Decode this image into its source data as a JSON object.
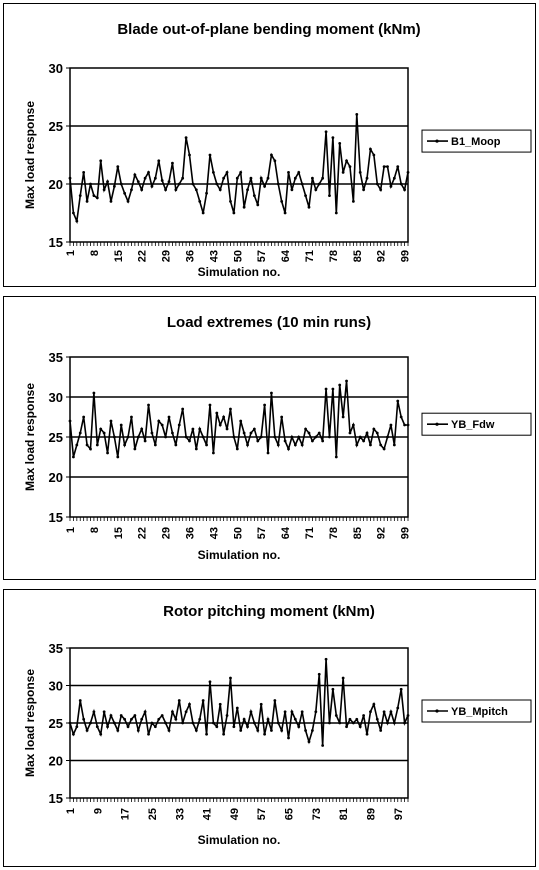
{
  "chart_data": [
    {
      "type": "line",
      "title": "Blade out-of-plane bending moment (kNm)",
      "xlabel": "Simulation no.",
      "ylabel": "Max load response",
      "ylim": [
        15,
        30
      ],
      "yticks": [
        "15",
        "20",
        "25",
        "30"
      ],
      "xlim": [
        1,
        100
      ],
      "xticks": [
        "1",
        "8",
        "15",
        "22",
        "29",
        "36",
        "43",
        "50",
        "57",
        "64",
        "71",
        "78",
        "85",
        "92",
        "99"
      ],
      "reference_lines": [
        20,
        25
      ],
      "legend": "right",
      "series": [
        {
          "name": "B1_Moop",
          "x": [
            1,
            2,
            3,
            4,
            5,
            6,
            7,
            8,
            9,
            10,
            11,
            12,
            13,
            14,
            15,
            16,
            17,
            18,
            19,
            20,
            21,
            22,
            23,
            24,
            25,
            26,
            27,
            28,
            29,
            30,
            31,
            32,
            33,
            34,
            35,
            36,
            37,
            38,
            39,
            40,
            41,
            42,
            43,
            44,
            45,
            46,
            47,
            48,
            49,
            50,
            51,
            52,
            53,
            54,
            55,
            56,
            57,
            58,
            59,
            60,
            61,
            62,
            63,
            64,
            65,
            66,
            67,
            68,
            69,
            70,
            71,
            72,
            73,
            74,
            75,
            76,
            77,
            78,
            79,
            80,
            81,
            82,
            83,
            84,
            85,
            86,
            87,
            88,
            89,
            90,
            91,
            92,
            93,
            94,
            95,
            96,
            97,
            98,
            99,
            100
          ],
          "values": [
            20.5,
            17.5,
            16.8,
            19.0,
            21.0,
            18.5,
            20.0,
            19.0,
            18.8,
            22.0,
            19.5,
            20.2,
            18.5,
            19.8,
            21.5,
            20.0,
            19.2,
            18.5,
            19.5,
            20.8,
            20.2,
            19.5,
            20.5,
            21.0,
            19.8,
            20.5,
            22.0,
            20.3,
            19.5,
            20.2,
            21.8,
            19.5,
            20.0,
            20.5,
            24.0,
            22.5,
            20.0,
            19.5,
            18.5,
            17.5,
            19.2,
            22.5,
            21.0,
            20.0,
            19.5,
            20.5,
            21.0,
            18.5,
            17.5,
            20.5,
            21.0,
            18.0,
            19.5,
            20.5,
            19.0,
            18.2,
            20.5,
            19.8,
            20.5,
            22.5,
            22.0,
            20.0,
            18.5,
            17.5,
            21.0,
            19.5,
            20.5,
            21.0,
            20.0,
            19.0,
            18.0,
            20.5,
            19.5,
            20.0,
            20.5,
            24.5,
            19.0,
            24.0,
            17.5,
            23.5,
            21.0,
            22.0,
            21.5,
            18.5,
            26.0,
            21.0,
            19.5,
            20.5,
            23.0,
            22.5,
            20.0,
            19.5,
            21.5,
            21.5,
            19.8,
            20.5,
            21.5,
            20.0,
            19.5,
            21.0
          ]
        }
      ]
    },
    {
      "type": "line",
      "title": "Load extremes (10 min runs)",
      "xlabel": "Simulation no.",
      "ylabel": "Max load response",
      "ylim": [
        15,
        35
      ],
      "yticks": [
        "15",
        "20",
        "25",
        "30",
        "35"
      ],
      "xlim": [
        1,
        100
      ],
      "xticks": [
        "1",
        "8",
        "15",
        "22",
        "29",
        "36",
        "43",
        "50",
        "57",
        "64",
        "71",
        "78",
        "85",
        "92",
        "99"
      ],
      "reference_lines": [
        20,
        25,
        30
      ],
      "legend": "right",
      "series": [
        {
          "name": "YB_Fdw",
          "x": [
            1,
            2,
            3,
            4,
            5,
            6,
            7,
            8,
            9,
            10,
            11,
            12,
            13,
            14,
            15,
            16,
            17,
            18,
            19,
            20,
            21,
            22,
            23,
            24,
            25,
            26,
            27,
            28,
            29,
            30,
            31,
            32,
            33,
            34,
            35,
            36,
            37,
            38,
            39,
            40,
            41,
            42,
            43,
            44,
            45,
            46,
            47,
            48,
            49,
            50,
            51,
            52,
            53,
            54,
            55,
            56,
            57,
            58,
            59,
            60,
            61,
            62,
            63,
            64,
            65,
            66,
            67,
            68,
            69,
            70,
            71,
            72,
            73,
            74,
            75,
            76,
            77,
            78,
            79,
            80,
            81,
            82,
            83,
            84,
            85,
            86,
            87,
            88,
            89,
            90,
            91,
            92,
            93,
            94,
            95,
            96,
            97,
            98,
            99,
            100
          ],
          "values": [
            27.0,
            22.5,
            24.0,
            25.5,
            27.5,
            24.0,
            23.5,
            30.5,
            24.0,
            26.0,
            25.5,
            23.0,
            27.0,
            25.0,
            22.5,
            26.5,
            24.0,
            25.0,
            27.5,
            23.5,
            25.0,
            26.0,
            24.5,
            29.0,
            25.5,
            24.0,
            27.0,
            26.5,
            25.0,
            27.5,
            25.5,
            24.0,
            26.5,
            28.5,
            25.0,
            24.5,
            26.0,
            23.5,
            26.0,
            25.0,
            24.0,
            29.0,
            23.0,
            28.0,
            26.5,
            27.5,
            26.0,
            28.5,
            25.0,
            23.5,
            27.0,
            25.5,
            24.0,
            25.5,
            26.0,
            24.5,
            25.0,
            29.0,
            23.0,
            30.5,
            25.0,
            24.0,
            27.5,
            24.5,
            23.5,
            25.0,
            24.0,
            25.0,
            24.0,
            26.0,
            25.5,
            24.5,
            25.0,
            25.5,
            24.5,
            31.0,
            25.0,
            31.0,
            22.5,
            31.5,
            27.5,
            32.0,
            25.5,
            26.5,
            24.0,
            25.0,
            24.5,
            25.5,
            24.0,
            26.0,
            25.5,
            24.0,
            23.5,
            25.0,
            26.5,
            24.0,
            29.5,
            27.5,
            26.5,
            26.5
          ]
        }
      ]
    },
    {
      "type": "line",
      "title": "Rotor pitching moment (kNm)",
      "xlabel": "Simulation no.",
      "ylabel": "Max load response",
      "ylim": [
        15,
        35
      ],
      "yticks": [
        "15",
        "20",
        "25",
        "30",
        "35"
      ],
      "xlim": [
        1,
        100
      ],
      "xticks": [
        "1",
        "9",
        "17",
        "25",
        "33",
        "41",
        "49",
        "57",
        "65",
        "73",
        "81",
        "89",
        "97"
      ],
      "reference_lines": [
        20,
        25,
        30
      ],
      "legend": "right",
      "series": [
        {
          "name": "YB_Mpitch",
          "x": [
            1,
            2,
            3,
            4,
            5,
            6,
            7,
            8,
            9,
            10,
            11,
            12,
            13,
            14,
            15,
            16,
            17,
            18,
            19,
            20,
            21,
            22,
            23,
            24,
            25,
            26,
            27,
            28,
            29,
            30,
            31,
            32,
            33,
            34,
            35,
            36,
            37,
            38,
            39,
            40,
            41,
            42,
            43,
            44,
            45,
            46,
            47,
            48,
            49,
            50,
            51,
            52,
            53,
            54,
            55,
            56,
            57,
            58,
            59,
            60,
            61,
            62,
            63,
            64,
            65,
            66,
            67,
            68,
            69,
            70,
            71,
            72,
            73,
            74,
            75,
            76,
            77,
            78,
            79,
            80,
            81,
            82,
            83,
            84,
            85,
            86,
            87,
            88,
            89,
            90,
            91,
            92,
            93,
            94,
            95,
            96,
            97,
            98,
            99,
            100
          ],
          "values": [
            25.0,
            23.5,
            24.5,
            28.0,
            25.5,
            24.0,
            25.0,
            26.5,
            24.5,
            23.5,
            26.5,
            24.5,
            26.0,
            25.0,
            24.0,
            26.0,
            25.5,
            24.5,
            25.5,
            26.0,
            24.0,
            25.5,
            26.5,
            23.5,
            25.0,
            24.5,
            25.5,
            26.0,
            25.0,
            24.0,
            26.5,
            25.5,
            28.0,
            25.0,
            26.5,
            27.5,
            25.0,
            24.0,
            25.5,
            28.0,
            23.5,
            30.5,
            25.0,
            24.5,
            27.5,
            23.5,
            26.0,
            31.0,
            24.5,
            27.0,
            24.0,
            25.5,
            24.5,
            26.5,
            25.0,
            24.0,
            27.5,
            23.5,
            25.5,
            24.0,
            28.0,
            25.0,
            24.0,
            26.5,
            23.0,
            26.5,
            25.5,
            24.5,
            26.5,
            24.0,
            22.5,
            24.0,
            26.5,
            31.5,
            22.0,
            33.5,
            25.0,
            29.5,
            26.0,
            25.0,
            31.0,
            24.5,
            25.5,
            25.0,
            25.5,
            24.5,
            26.0,
            23.5,
            26.5,
            27.5,
            25.5,
            24.0,
            26.5,
            25.0,
            26.5,
            25.0,
            27.0,
            29.5,
            25.0,
            26.0
          ]
        }
      ]
    }
  ]
}
